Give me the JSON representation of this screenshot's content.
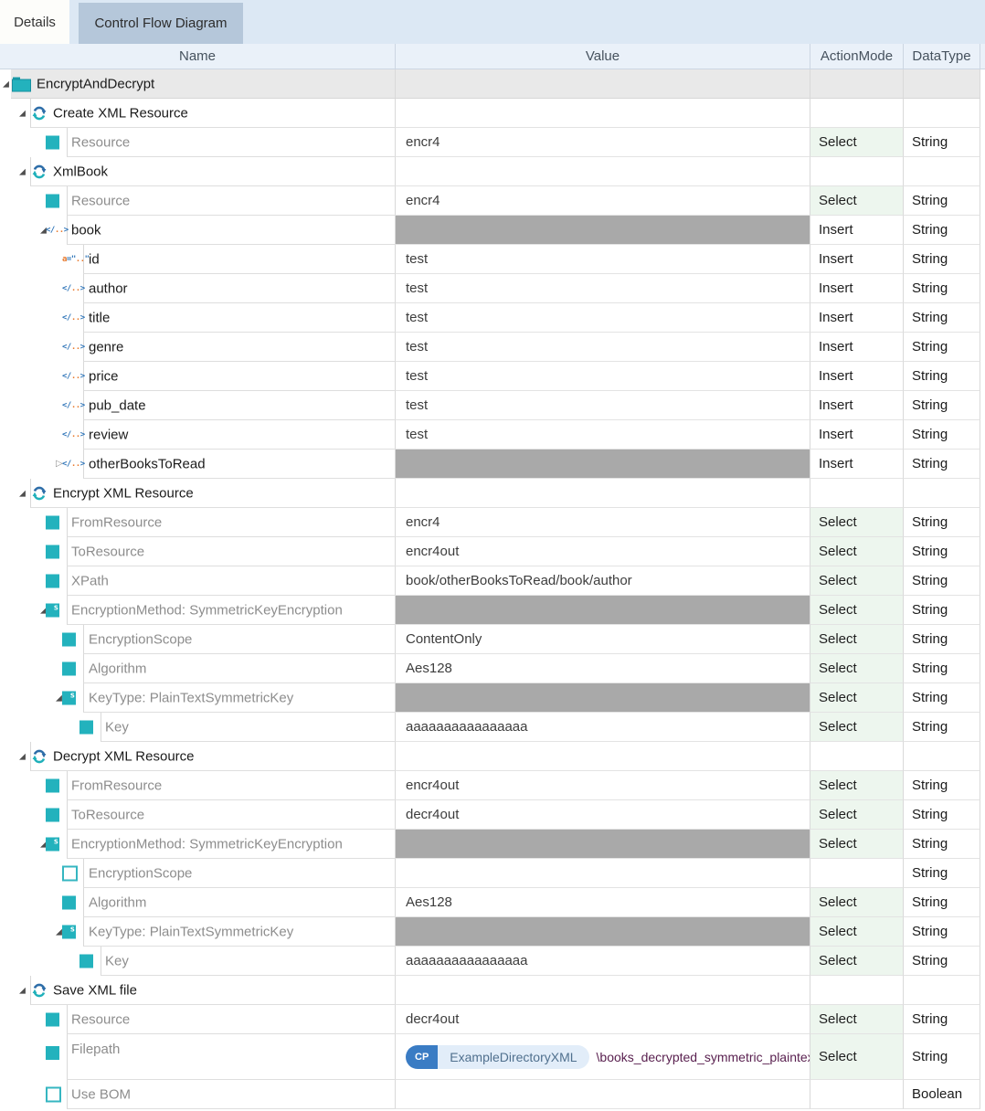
{
  "tabs": [
    {
      "label": "Details",
      "active": true
    },
    {
      "label": "Control Flow Diagram",
      "active": false
    }
  ],
  "columns": [
    "Name",
    "Value",
    "ActionMode",
    "DataType"
  ],
  "colors": {
    "accent_teal": "#23b2bd",
    "refresh_blue": "#2d6da8",
    "select_green_bg": "#edf6ee",
    "complex_value_gray": "#a9a9a9",
    "root_row_gray": "#e9e9e9",
    "tab_bar_blue": "#dce8f4",
    "inactive_tab_blue": "#b5c7da",
    "chip_badge_blue": "#3a7cc4",
    "chip_label_bg": "#e2edf9",
    "filepath_text": "#5a2150"
  },
  "rows": [
    {
      "label": "EncryptAndDecrypt",
      "level": 0,
      "icon": "folder-icon",
      "expander": "expanded",
      "label_style": "node",
      "value_kind": "text",
      "value": "",
      "action": "",
      "type": "",
      "gray_row": true
    },
    {
      "label": "Create XML Resource",
      "level": 1,
      "icon": "refresh-icon",
      "expander": "expanded",
      "label_style": "node",
      "value_kind": "text",
      "value": "",
      "action": "",
      "type": ""
    },
    {
      "label": "Resource",
      "level": 2,
      "icon": "square-icon",
      "expander": "none",
      "label_style": "param",
      "value_kind": "text",
      "value": "encr4",
      "action": "Select",
      "type": "String"
    },
    {
      "label": "XmlBook",
      "level": 1,
      "icon": "refresh-icon",
      "expander": "expanded",
      "label_style": "node",
      "value_kind": "text",
      "value": "",
      "action": "",
      "type": ""
    },
    {
      "label": "Resource",
      "level": 2,
      "icon": "square-icon",
      "expander": "none",
      "label_style": "param",
      "value_kind": "text",
      "value": "encr4",
      "action": "Select",
      "type": "String"
    },
    {
      "label": "book",
      "level": 2,
      "icon": "xml-element-icon",
      "expander": "expanded",
      "label_style": "node",
      "value_kind": "gray",
      "value": "",
      "action": "Insert",
      "type": "String"
    },
    {
      "label": "id",
      "level": 3,
      "icon": "xml-attribute-icon",
      "expander": "none",
      "label_style": "node",
      "value_kind": "text",
      "value": "test",
      "action": "Insert",
      "type": "String"
    },
    {
      "label": "author",
      "level": 3,
      "icon": "xml-element-icon",
      "expander": "none",
      "label_style": "node",
      "value_kind": "text",
      "value": "test",
      "action": "Insert",
      "type": "String"
    },
    {
      "label": "title",
      "level": 3,
      "icon": "xml-element-icon",
      "expander": "none",
      "label_style": "node",
      "value_kind": "text",
      "value": "test",
      "action": "Insert",
      "type": "String"
    },
    {
      "label": "genre",
      "level": 3,
      "icon": "xml-element-icon",
      "expander": "none",
      "label_style": "node",
      "value_kind": "text",
      "value": "test",
      "action": "Insert",
      "type": "String"
    },
    {
      "label": "price",
      "level": 3,
      "icon": "xml-element-icon",
      "expander": "none",
      "label_style": "node",
      "value_kind": "text",
      "value": "test",
      "action": "Insert",
      "type": "String"
    },
    {
      "label": "pub_date",
      "level": 3,
      "icon": "xml-element-icon",
      "expander": "none",
      "label_style": "node",
      "value_kind": "text",
      "value": "test",
      "action": "Insert",
      "type": "String"
    },
    {
      "label": "review",
      "level": 3,
      "icon": "xml-element-icon",
      "expander": "none",
      "label_style": "node",
      "value_kind": "text",
      "value": "test",
      "action": "Insert",
      "type": "String"
    },
    {
      "label": "otherBooksToRead",
      "level": 3,
      "icon": "xml-element-icon",
      "expander": "collapsed",
      "label_style": "node",
      "value_kind": "gray",
      "value": "",
      "action": "Insert",
      "type": "String"
    },
    {
      "label": "Encrypt XML Resource",
      "level": 1,
      "icon": "refresh-icon",
      "expander": "expanded",
      "label_style": "node",
      "value_kind": "text",
      "value": "",
      "action": "",
      "type": ""
    },
    {
      "label": "FromResource",
      "level": 2,
      "icon": "square-icon",
      "expander": "none",
      "label_style": "param",
      "value_kind": "text",
      "value": "encr4",
      "action": "Select",
      "type": "String"
    },
    {
      "label": "ToResource",
      "level": 2,
      "icon": "square-icon",
      "expander": "none",
      "label_style": "param",
      "value_kind": "text",
      "value": "encr4out",
      "action": "Select",
      "type": "String"
    },
    {
      "label": "XPath",
      "level": 2,
      "icon": "square-icon",
      "expander": "none",
      "label_style": "param",
      "value_kind": "text",
      "value": "book/otherBooksToRead/book/author",
      "action": "Select",
      "type": "String"
    },
    {
      "label": "EncryptionMethod: SymmetricKeyEncryption",
      "level": 2,
      "icon": "square-s-icon",
      "expander": "expanded",
      "label_style": "param",
      "value_kind": "gray",
      "value": "",
      "action": "Select",
      "type": "String"
    },
    {
      "label": "EncryptionScope",
      "level": 3,
      "icon": "square-icon",
      "expander": "none",
      "label_style": "param",
      "value_kind": "text",
      "value": "ContentOnly",
      "action": "Select",
      "type": "String"
    },
    {
      "label": "Algorithm",
      "level": 3,
      "icon": "square-icon",
      "expander": "none",
      "label_style": "param",
      "value_kind": "text",
      "value": "Aes128",
      "action": "Select",
      "type": "String"
    },
    {
      "label": "KeyType: PlainTextSymmetricKey",
      "level": 3,
      "icon": "square-s-icon",
      "expander": "expanded",
      "label_style": "param",
      "value_kind": "gray",
      "value": "",
      "action": "Select",
      "type": "String"
    },
    {
      "label": "Key",
      "level": 4,
      "icon": "square-icon",
      "expander": "none",
      "label_style": "param",
      "value_kind": "text",
      "value": "aaaaaaaaaaaaaaaa",
      "action": "Select",
      "type": "String"
    },
    {
      "label": "Decrypt XML Resource",
      "level": 1,
      "icon": "refresh-icon",
      "expander": "expanded",
      "label_style": "node",
      "value_kind": "text",
      "value": "",
      "action": "",
      "type": ""
    },
    {
      "label": "FromResource",
      "level": 2,
      "icon": "square-icon",
      "expander": "none",
      "label_style": "param",
      "value_kind": "text",
      "value": "encr4out",
      "action": "Select",
      "type": "String"
    },
    {
      "label": "ToResource",
      "level": 2,
      "icon": "square-icon",
      "expander": "none",
      "label_style": "param",
      "value_kind": "text",
      "value": "decr4out",
      "action": "Select",
      "type": "String"
    },
    {
      "label": "EncryptionMethod: SymmetricKeyEncryption",
      "level": 2,
      "icon": "square-s-icon",
      "expander": "expanded",
      "label_style": "param",
      "value_kind": "gray",
      "value": "",
      "action": "Select",
      "type": "String"
    },
    {
      "label": "EncryptionScope",
      "level": 3,
      "icon": "square-outline-icon",
      "expander": "none",
      "label_style": "param",
      "value_kind": "text",
      "value": "",
      "action": "",
      "type": "String"
    },
    {
      "label": "Algorithm",
      "level": 3,
      "icon": "square-icon",
      "expander": "none",
      "label_style": "param",
      "value_kind": "text",
      "value": "Aes128",
      "action": "Select",
      "type": "String"
    },
    {
      "label": "KeyType: PlainTextSymmetricKey",
      "level": 3,
      "icon": "square-s-icon",
      "expander": "expanded",
      "label_style": "param",
      "value_kind": "gray",
      "value": "",
      "action": "Select",
      "type": "String"
    },
    {
      "label": "Key",
      "level": 4,
      "icon": "square-icon",
      "expander": "none",
      "label_style": "param",
      "value_kind": "text",
      "value": "aaaaaaaaaaaaaaaa",
      "action": "Select",
      "type": "String"
    },
    {
      "label": "Save XML file",
      "level": 1,
      "icon": "refresh-icon",
      "expander": "expanded",
      "label_style": "node",
      "value_kind": "text",
      "value": "",
      "action": "",
      "type": ""
    },
    {
      "label": "Resource",
      "level": 2,
      "icon": "square-icon",
      "expander": "none",
      "label_style": "param",
      "value_kind": "text",
      "value": "decr4out",
      "action": "Select",
      "type": "String"
    },
    {
      "label": "Filepath",
      "level": 2,
      "icon": "square-icon",
      "expander": "none",
      "label_style": "param",
      "value_kind": "chip",
      "chip": {
        "badge": "CP",
        "label": "ExampleDirectoryXML",
        "path": "\\books_decrypted_symmetric_plaintext.xml"
      },
      "action": "Select",
      "type": "String",
      "tall": true
    },
    {
      "label": "Use BOM",
      "level": 2,
      "icon": "square-outline-icon",
      "expander": "none",
      "label_style": "param",
      "value_kind": "text",
      "value": "",
      "action": "",
      "type": "Boolean"
    }
  ]
}
